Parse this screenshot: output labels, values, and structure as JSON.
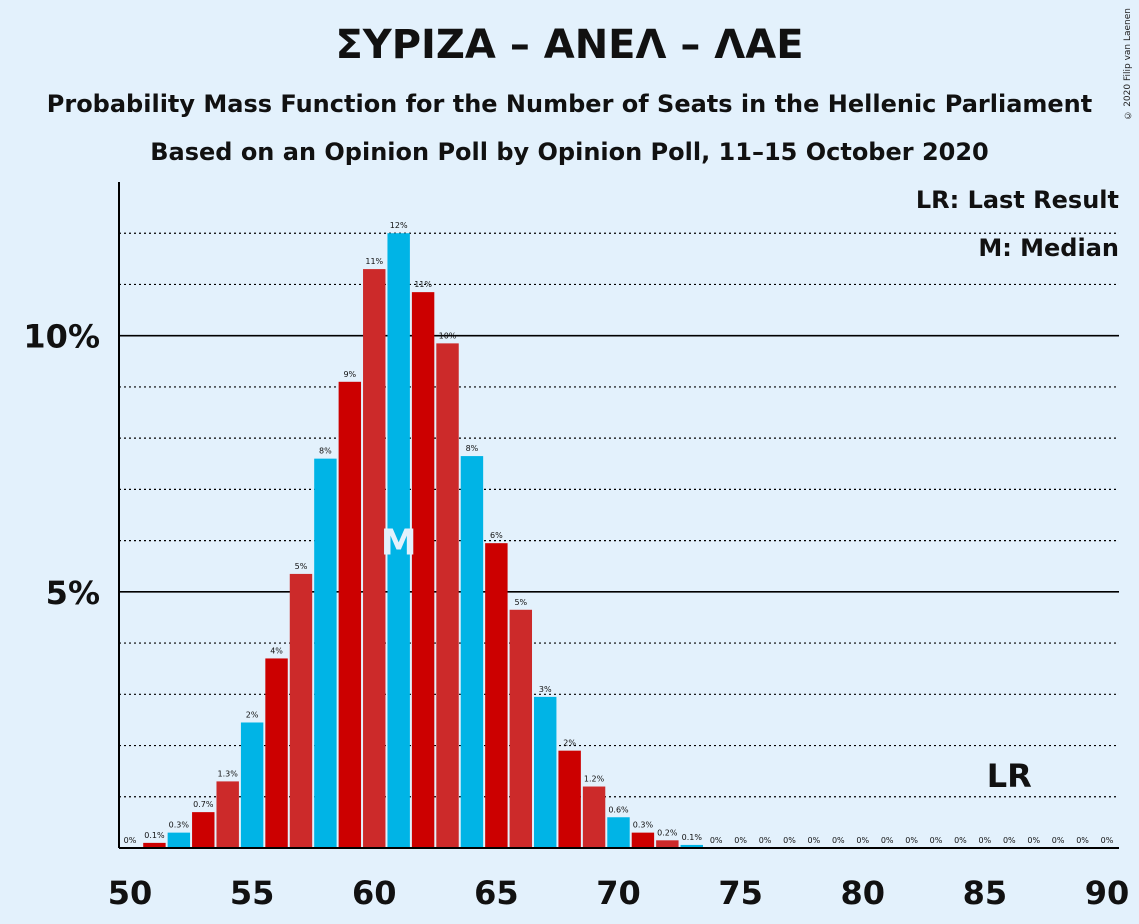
{
  "title": "ΣΥΡΙΖΑ – ΑΝΕΛ – ΛΑΕ",
  "subtitle1": "Probability Mass Function for the Number of Seats in the Hellenic Parliament",
  "subtitle2": "Based on an Opinion Poll by Opinion Poll, 11–15 October 2020",
  "copyright": "© 2020 Filip van Laenen",
  "legend": {
    "last_result": "LR: Last Result",
    "median": "M: Median"
  },
  "colors": {
    "background": "#e3f1fc",
    "red": "#cc0000",
    "red_alt": "#cc2a2a",
    "blue": "#00b4e6"
  },
  "chart_data": {
    "type": "bar",
    "x": [
      50,
      51,
      52,
      53,
      54,
      55,
      56,
      57,
      58,
      59,
      60,
      61,
      62,
      63,
      64,
      65,
      66,
      67,
      68,
      69,
      70,
      71,
      72,
      73,
      74,
      75,
      76,
      77,
      78,
      79,
      80,
      81,
      82,
      83,
      84,
      85,
      86,
      87,
      88,
      89,
      90
    ],
    "values": [
      0,
      0.1,
      0.3,
      0.7,
      1.3,
      2.45,
      3.7,
      5.35,
      7.6,
      9.1,
      11.3,
      12.0,
      10.85,
      9.85,
      7.65,
      5.95,
      4.65,
      2.95,
      1.9,
      1.2,
      0.6,
      0.3,
      0.15,
      0.06,
      0,
      0,
      0,
      0,
      0,
      0,
      0,
      0,
      0,
      0,
      0,
      0,
      0,
      0,
      0,
      0,
      0
    ],
    "labels": [
      "0%",
      "0.1%",
      "0.3%",
      "0.7%",
      "1.3%",
      "2%",
      "4%",
      "5%",
      "8%",
      "9%",
      "11%",
      "12%",
      "11%",
      "10%",
      "8%",
      "6%",
      "5%",
      "3%",
      "2%",
      "1.2%",
      "0.6%",
      "0.3%",
      "0.2%",
      "0.1%",
      "0%",
      "0%",
      "0%",
      "0%",
      "0%",
      "0%",
      "0%",
      "0%",
      "0%",
      "0%",
      "0%",
      "0%",
      "0%",
      "0%",
      "0%",
      "0%",
      "0%"
    ],
    "bar_colors": [
      "red",
      "red",
      "blue",
      "red",
      "red_alt",
      "blue",
      "red",
      "red_alt",
      "blue",
      "red",
      "red_alt",
      "blue",
      "red",
      "red_alt",
      "blue",
      "red",
      "red_alt",
      "blue",
      "red",
      "red_alt",
      "blue",
      "red",
      "red_alt",
      "blue",
      "red",
      "red_alt",
      "blue",
      "red",
      "red_alt",
      "blue",
      "red",
      "red_alt",
      "blue",
      "red",
      "red_alt",
      "blue",
      "red",
      "red_alt",
      "blue",
      "red",
      "red_alt"
    ],
    "x_ticks": [
      50,
      55,
      60,
      65,
      70,
      75,
      80,
      85,
      90
    ],
    "y_ticks": [
      {
        "value": 5,
        "label": "5%"
      },
      {
        "value": 10,
        "label": "10%"
      }
    ],
    "y_minor_gridlines": [
      1,
      2,
      3,
      4,
      6,
      7,
      8,
      9,
      11,
      12
    ],
    "ylim": [
      0,
      13
    ],
    "xlim": [
      49.5,
      90.5
    ],
    "median": 61,
    "median_label": "M",
    "last_result": 86,
    "last_result_label": "LR",
    "xlabel": "",
    "ylabel": ""
  }
}
